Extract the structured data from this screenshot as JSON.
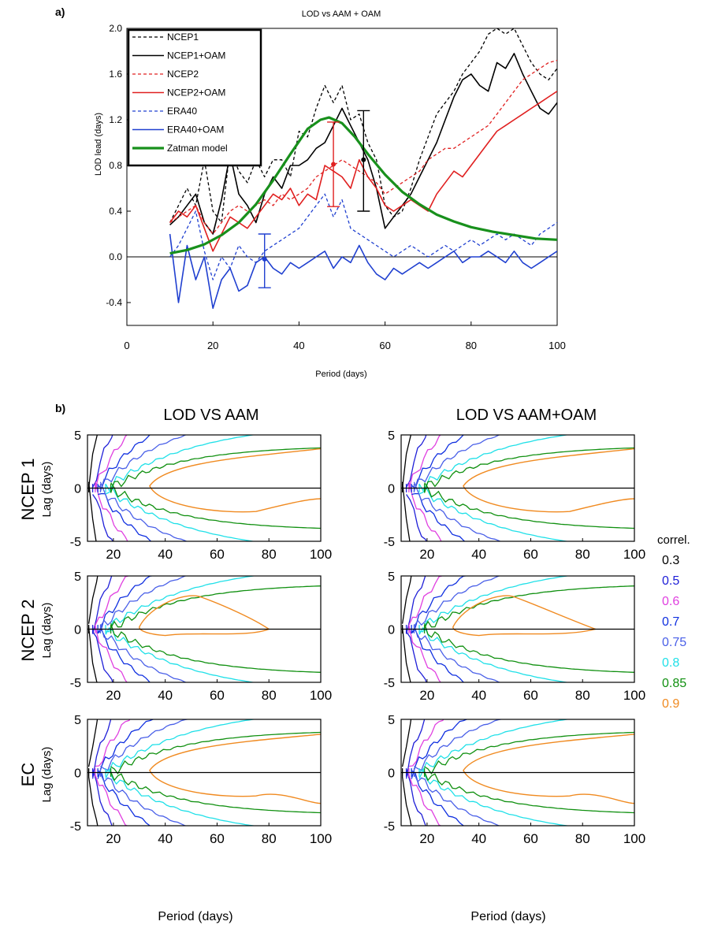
{
  "panel_a": {
    "label": "a)",
    "title": "LOD vs AAM + OAM",
    "xlabel": "Period (days)",
    "ylabel": "LOD lead (days)",
    "xlim": [
      0,
      100
    ],
    "ylim": [
      -0.6,
      2.0
    ],
    "xticks": [
      0,
      20,
      40,
      60,
      80,
      100
    ],
    "yticks": [
      -0.4,
      0.0,
      0.4,
      0.8,
      1.2,
      1.6,
      2.0
    ],
    "ytick_labels": [
      "-0.4",
      "0.0",
      "0.4",
      "0.8",
      "1.2",
      "1.6",
      "2.0"
    ],
    "legend_position": "top-left"
  },
  "panel_b": {
    "label": "b)",
    "col_titles": [
      "LOD VS AAM",
      "LOD VS AAM+OAM"
    ],
    "row_titles": [
      "NCEP 1",
      "NCEP 2",
      "EC"
    ],
    "ylabel": "Lag (days)",
    "xlabel": "Period (days)",
    "xlim": [
      10,
      100
    ],
    "ylim": [
      -5,
      5
    ],
    "xticks": [
      20,
      40,
      60,
      80,
      100
    ],
    "yticks": [
      5,
      0,
      -5
    ],
    "legend_title": "correl.",
    "contour_levels": [
      {
        "label": "0.3",
        "color": "#000000"
      },
      {
        "label": "0.5",
        "color": "#2020d8"
      },
      {
        "label": "0.6",
        "color": "#e040e0"
      },
      {
        "label": "0.7",
        "color": "#1030e0"
      },
      {
        "label": "0.75",
        "color": "#4a60e8"
      },
      {
        "label": "0.8",
        "color": "#20e0e8"
      },
      {
        "label": "0.85",
        "color": "#109010"
      },
      {
        "label": "0.9",
        "color": "#f08a20"
      }
    ]
  },
  "chart_data": [
    {
      "type": "line",
      "title": "LOD vs AAM + OAM",
      "xlabel": "Period (days)",
      "ylabel": "LOD lead (days)",
      "xlim": [
        0,
        100
      ],
      "ylim": [
        -0.6,
        2.0
      ],
      "series": [
        {
          "name": "NCEP1",
          "color": "#000000",
          "dash": true,
          "width": 1.3,
          "x": [
            10,
            12,
            14,
            16,
            18,
            20,
            22,
            24,
            26,
            28,
            30,
            32,
            34,
            36,
            38,
            40,
            42,
            44,
            46,
            48,
            50,
            52,
            54,
            56,
            58,
            60,
            62,
            64,
            66,
            68,
            70,
            72,
            74,
            76,
            78,
            80,
            82,
            84,
            86,
            88,
            90,
            92,
            94,
            96,
            98,
            100
          ],
          "y": [
            0.3,
            0.45,
            0.6,
            0.45,
            0.85,
            0.4,
            0.3,
            0.95,
            0.75,
            0.65,
            0.85,
            0.7,
            0.85,
            0.85,
            0.7,
            1.1,
            1.05,
            1.3,
            1.5,
            1.35,
            1.5,
            1.2,
            1.25,
            1.0,
            0.85,
            0.45,
            0.35,
            0.4,
            0.6,
            0.85,
            1.05,
            1.25,
            1.35,
            1.45,
            1.6,
            1.7,
            1.8,
            1.95,
            2.0,
            1.95,
            2.0,
            1.85,
            1.7,
            1.6,
            1.55,
            1.65
          ]
        },
        {
          "name": "NCEP1+OAM",
          "color": "#000000",
          "dash": false,
          "width": 1.6,
          "x": [
            10,
            12,
            14,
            16,
            18,
            20,
            22,
            24,
            26,
            28,
            30,
            32,
            34,
            36,
            38,
            40,
            42,
            44,
            46,
            48,
            50,
            52,
            54,
            56,
            58,
            60,
            62,
            64,
            66,
            68,
            70,
            72,
            74,
            76,
            78,
            80,
            82,
            84,
            86,
            88,
            90,
            92,
            94,
            96,
            98,
            100
          ],
          "y": [
            0.28,
            0.35,
            0.45,
            0.55,
            0.3,
            0.2,
            0.5,
            0.9,
            0.55,
            0.45,
            0.3,
            0.55,
            0.7,
            0.6,
            0.8,
            0.8,
            0.85,
            0.95,
            1.0,
            1.15,
            1.3,
            1.15,
            1.0,
            0.85,
            0.6,
            0.25,
            0.35,
            0.45,
            0.55,
            0.7,
            0.85,
            1.0,
            1.2,
            1.4,
            1.55,
            1.6,
            1.5,
            1.45,
            1.7,
            1.65,
            1.78,
            1.6,
            1.45,
            1.3,
            1.25,
            1.35
          ]
        },
        {
          "name": "NCEP2",
          "color": "#e02020",
          "dash": true,
          "width": 1.3,
          "x": [
            10,
            12,
            14,
            16,
            18,
            20,
            22,
            24,
            26,
            28,
            30,
            32,
            34,
            36,
            38,
            40,
            42,
            44,
            46,
            48,
            50,
            52,
            54,
            56,
            58,
            60,
            62,
            64,
            66,
            68,
            70,
            72,
            74,
            76,
            78,
            80,
            82,
            84,
            86,
            88,
            90,
            92,
            94,
            96,
            98,
            100
          ],
          "y": [
            0.3,
            0.35,
            0.4,
            0.45,
            0.3,
            0.2,
            0.3,
            0.4,
            0.45,
            0.4,
            0.45,
            0.5,
            0.45,
            0.55,
            0.5,
            0.55,
            0.6,
            0.7,
            0.75,
            0.8,
            0.85,
            0.8,
            0.75,
            0.7,
            0.65,
            0.55,
            0.6,
            0.65,
            0.7,
            0.75,
            0.85,
            0.9,
            0.95,
            0.95,
            1.0,
            1.05,
            1.1,
            1.15,
            1.25,
            1.35,
            1.45,
            1.55,
            1.6,
            1.65,
            1.7,
            1.72
          ]
        },
        {
          "name": "NCEP2+OAM",
          "color": "#e02020",
          "dash": false,
          "width": 1.6,
          "x": [
            10,
            12,
            14,
            16,
            18,
            20,
            22,
            24,
            26,
            28,
            30,
            32,
            34,
            36,
            38,
            40,
            42,
            44,
            46,
            48,
            50,
            52,
            54,
            56,
            58,
            60,
            62,
            64,
            66,
            68,
            70,
            72,
            74,
            76,
            78,
            80,
            82,
            84,
            86,
            88,
            90,
            92,
            94,
            96,
            98,
            100
          ],
          "y": [
            0.3,
            0.4,
            0.35,
            0.45,
            0.25,
            0.05,
            0.2,
            0.35,
            0.3,
            0.25,
            0.35,
            0.45,
            0.55,
            0.5,
            0.6,
            0.45,
            0.55,
            0.5,
            0.8,
            0.75,
            0.7,
            0.6,
            0.85,
            0.7,
            0.6,
            0.45,
            0.4,
            0.45,
            0.5,
            0.45,
            0.4,
            0.55,
            0.65,
            0.75,
            0.7,
            0.8,
            0.9,
            1.0,
            1.1,
            1.15,
            1.2,
            1.25,
            1.3,
            1.35,
            1.4,
            1.45
          ]
        },
        {
          "name": "ERA40",
          "color": "#2040d0",
          "dash": true,
          "width": 1.3,
          "x": [
            10,
            12,
            14,
            16,
            18,
            20,
            22,
            24,
            26,
            28,
            30,
            32,
            34,
            36,
            38,
            40,
            42,
            44,
            46,
            48,
            50,
            52,
            54,
            56,
            58,
            60,
            62,
            64,
            66,
            68,
            70,
            72,
            74,
            76,
            78,
            80,
            82,
            84,
            86,
            88,
            90,
            92,
            94,
            96,
            98,
            100
          ],
          "y": [
            0.0,
            0.1,
            0.25,
            0.4,
            0.05,
            -0.2,
            0.0,
            -0.1,
            0.1,
            0.0,
            -0.05,
            0.05,
            0.1,
            0.15,
            0.2,
            0.25,
            0.35,
            0.45,
            0.55,
            0.35,
            0.5,
            0.25,
            0.2,
            0.15,
            0.1,
            0.05,
            0.0,
            0.05,
            0.1,
            0.05,
            0.0,
            0.05,
            0.1,
            0.05,
            0.1,
            0.15,
            0.1,
            0.15,
            0.2,
            0.15,
            0.2,
            0.15,
            0.1,
            0.2,
            0.25,
            0.3
          ]
        },
        {
          "name": "ERA40+OAM",
          "color": "#2040d0",
          "dash": false,
          "width": 1.6,
          "x": [
            10,
            12,
            14,
            16,
            18,
            20,
            22,
            24,
            26,
            28,
            30,
            32,
            34,
            36,
            38,
            40,
            42,
            44,
            46,
            48,
            50,
            52,
            54,
            56,
            58,
            60,
            62,
            64,
            66,
            68,
            70,
            72,
            74,
            76,
            78,
            80,
            82,
            84,
            86,
            88,
            90,
            92,
            94,
            96,
            98,
            100
          ],
          "y": [
            0.2,
            -0.4,
            0.1,
            -0.2,
            0.0,
            -0.45,
            -0.2,
            -0.1,
            -0.3,
            -0.25,
            -0.05,
            0.0,
            -0.1,
            -0.15,
            -0.05,
            -0.1,
            -0.05,
            0.0,
            0.05,
            -0.1,
            0.0,
            -0.05,
            0.1,
            -0.05,
            -0.15,
            -0.2,
            -0.1,
            -0.15,
            -0.1,
            -0.05,
            -0.1,
            -0.05,
            0.0,
            0.05,
            -0.05,
            0.0,
            0.0,
            0.05,
            0.0,
            -0.05,
            0.05,
            -0.05,
            -0.1,
            -0.05,
            0.0,
            0.05
          ]
        },
        {
          "name": "Zatman model",
          "color": "#18901c",
          "dash": false,
          "width": 3.2,
          "x": [
            10,
            14,
            18,
            22,
            26,
            30,
            34,
            38,
            42,
            45,
            47,
            50,
            53,
            56,
            60,
            64,
            68,
            72,
            76,
            80,
            85,
            90,
            95,
            100
          ],
          "y": [
            0.03,
            0.06,
            0.11,
            0.19,
            0.3,
            0.46,
            0.67,
            0.9,
            1.12,
            1.2,
            1.22,
            1.17,
            1.05,
            0.9,
            0.72,
            0.57,
            0.46,
            0.37,
            0.31,
            0.26,
            0.22,
            0.19,
            0.16,
            0.15
          ]
        }
      ],
      "error_bars": [
        {
          "x": 32,
          "center": -0.02,
          "low": -0.27,
          "high": 0.2,
          "color": "#2040d0"
        },
        {
          "x": 48,
          "center": 0.81,
          "low": 0.44,
          "high": 1.18,
          "color": "#e02020"
        },
        {
          "x": 55,
          "center": 0.85,
          "low": 0.4,
          "high": 1.28,
          "color": "#000000"
        }
      ]
    },
    {
      "type": "contour",
      "title": "LOD VS AAM / LOD VS AAM+OAM",
      "rows": [
        "NCEP 1",
        "NCEP 2",
        "EC"
      ],
      "columns": [
        "LOD VS AAM",
        "LOD VS AAM+OAM"
      ],
      "xlabel": "Period (days)",
      "ylabel": "Lag (days)",
      "xlim": [
        10,
        100
      ],
      "ylim": [
        -5,
        5
      ],
      "levels": [
        0.3,
        0.5,
        0.6,
        0.7,
        0.75,
        0.8,
        0.85,
        0.9
      ]
    }
  ]
}
